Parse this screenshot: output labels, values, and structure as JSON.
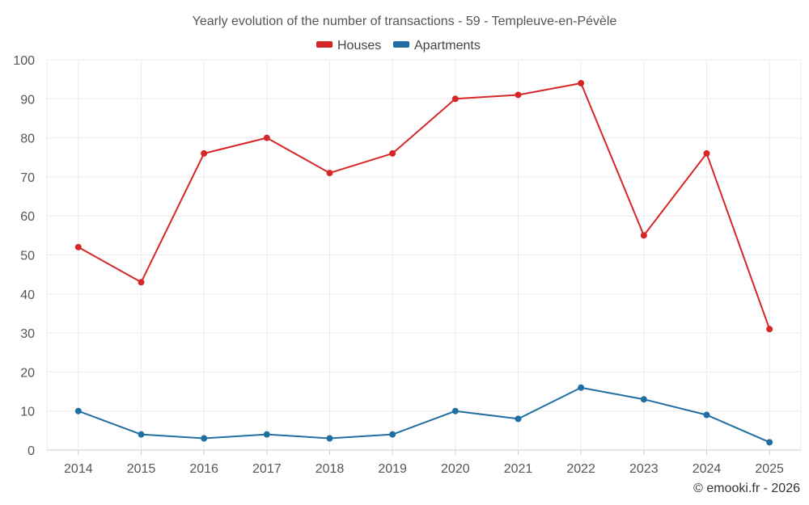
{
  "chart_data": {
    "type": "line",
    "title": "Yearly evolution of the number of transactions - 59 - Templeuve-en-Pévèle",
    "categories": [
      "2014",
      "2015",
      "2016",
      "2017",
      "2018",
      "2019",
      "2020",
      "2021",
      "2022",
      "2023",
      "2024",
      "2025"
    ],
    "series": [
      {
        "name": "Houses",
        "color": "#d62728",
        "values": [
          52,
          43,
          76,
          80,
          71,
          76,
          90,
          91,
          94,
          55,
          76,
          31
        ]
      },
      {
        "name": "Apartments",
        "color": "#1f6fa3",
        "values": [
          10,
          4,
          3,
          4,
          3,
          4,
          10,
          8,
          16,
          13,
          9,
          2
        ]
      }
    ],
    "ylim": [
      0,
      100
    ],
    "yticks": [
      0,
      10,
      20,
      30,
      40,
      50,
      60,
      70,
      80,
      90,
      100
    ],
    "grid": true,
    "legend_position": "top-center",
    "xlabel": "",
    "ylabel": ""
  },
  "credit": "© emooki.fr - 2026"
}
